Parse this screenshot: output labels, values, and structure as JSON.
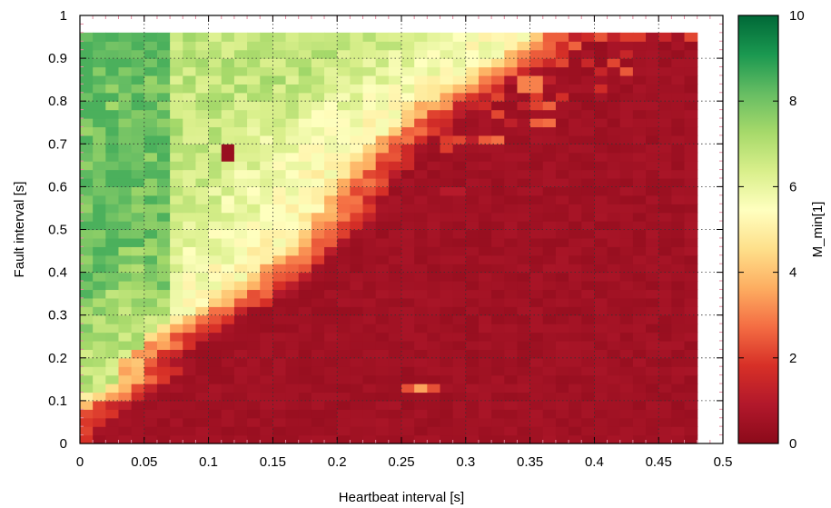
{
  "chart_data": {
    "type": "heatmap",
    "title": "",
    "xlabel": "Heartbeat interval [s]",
    "ylabel": "Fault interval [s]",
    "colorbar_label": "M_min[1]",
    "xlim": [
      0,
      0.5
    ],
    "ylim": [
      0,
      1
    ],
    "x_ticks": [
      "0",
      "0.05",
      "0.1",
      "0.15",
      "0.2",
      "0.25",
      "0.3",
      "0.35",
      "0.4",
      "0.45",
      "0.5"
    ],
    "y_ticks": [
      "0",
      "0.1",
      "0.2",
      "0.3",
      "0.4",
      "0.5",
      "0.6",
      "0.7",
      "0.8",
      "0.9",
      "1"
    ],
    "colorbar_ticks": [
      "0",
      "2",
      "4",
      "6",
      "8",
      "10"
    ],
    "colorbar_range": [
      0,
      10
    ],
    "grid": true,
    "colormap": [
      "#8b0a1a",
      "#b2182b",
      "#d73027",
      "#f46d43",
      "#fdae61",
      "#fee08b",
      "#ffffbf",
      "#d9ef8b",
      "#a6d96a",
      "#66bd63",
      "#1a9850",
      "#006837"
    ],
    "cell_size": [
      0.01,
      0.02
    ],
    "data_extent": {
      "x": [
        0,
        0.48
      ],
      "y": [
        0,
        0.96
      ]
    },
    "features": {
      "boundary_points": [
        {
          "y": 0.0,
          "x": 0.0
        },
        {
          "y": 0.04,
          "x": 0.01
        },
        {
          "y": 0.08,
          "x": 0.02
        },
        {
          "y": 0.1,
          "x": 0.035
        },
        {
          "y": 0.12,
          "x": 0.05
        },
        {
          "y": 0.14,
          "x": 0.06
        },
        {
          "y": 0.2,
          "x": 0.07
        },
        {
          "y": 0.26,
          "x": 0.09
        },
        {
          "y": 0.3,
          "x": 0.12
        },
        {
          "y": 0.34,
          "x": 0.145
        },
        {
          "y": 0.4,
          "x": 0.17
        },
        {
          "y": 0.5,
          "x": 0.21
        },
        {
          "y": 0.6,
          "x": 0.23
        },
        {
          "y": 0.7,
          "x": 0.26
        },
        {
          "y": 0.8,
          "x": 0.3
        },
        {
          "y": 0.9,
          "x": 0.36
        },
        {
          "y": 0.96,
          "x": 0.39
        }
      ],
      "bright_green_region": {
        "x_max": 0.07,
        "y_min": 0.12,
        "peak_value": 8.5
      },
      "island": {
        "x": 0.265,
        "y": 0.13,
        "value": 3.5
      },
      "hotspots": [
        {
          "x": 0.115,
          "y": 0.68,
          "value": 0.3
        },
        {
          "x": 0.35,
          "y": 0.84,
          "value": 3.0
        },
        {
          "x": 0.43,
          "y": 0.95,
          "value": 2.0
        },
        {
          "x": 0.37,
          "y": 0.95,
          "value": 2.5
        },
        {
          "x": 0.285,
          "y": 0.7,
          "value": 2.0
        },
        {
          "x": 0.29,
          "y": 0.59,
          "value": 1.0
        }
      ]
    }
  }
}
